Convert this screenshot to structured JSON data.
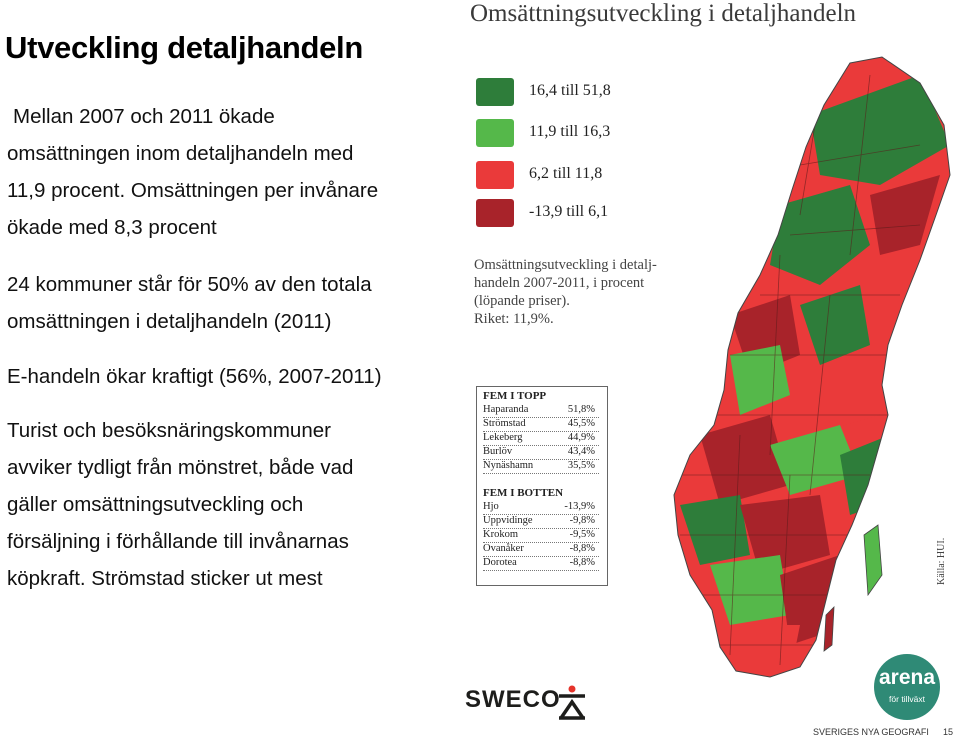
{
  "slide": {
    "title": "Utveckling detaljhandeln",
    "paragraphs": [
      [
        "Mellan 2007 och 2011 ökade",
        "omsättningen inom detaljhandeln med",
        "11,9 procent. Omsättningen per invånare",
        "ökade med 8,3 procent"
      ],
      [
        "24 kommuner  står för 50% av den totala",
        "omsättningen i detaljhandeln (2011)"
      ],
      [
        "E-handeln ökar kraftigt (56%, 2007-2011)"
      ],
      [
        "Turist och besöksnäringskommuner",
        "avviker tydligt från mönstret, både vad",
        "gäller omsättningsutveckling och",
        "försäljning i förhållande till invånarnas",
        "köpkraft. Strömstad sticker ut mest"
      ]
    ]
  },
  "map": {
    "title": "Omsättningsutveckling i detaljhandeln",
    "legend": [
      {
        "label": "16,4 till 51,8",
        "color": "#2e7d3a"
      },
      {
        "label": "11,9 till 16,3",
        "color": "#55b84a"
      },
      {
        "label": "6,2 till 11,8",
        "color": "#ea3a3a"
      },
      {
        "label": "-13,9 till 6,1",
        "color": "#a8232a"
      }
    ],
    "description": [
      "Omsättningsutveckling i detalj-",
      "handeln 2007-2011, i procent",
      "(löpande priser).",
      "Riket: 11,9%."
    ],
    "top": {
      "heading": "FEM I TOPP",
      "rows": [
        {
          "name": "Haparanda",
          "value": "51,8%"
        },
        {
          "name": "Strömstad",
          "value": "45,5%"
        },
        {
          "name": "Lekeberg",
          "value": "44,9%"
        },
        {
          "name": "Burlöv",
          "value": "43,4%"
        },
        {
          "name": "Nynäshamn",
          "value": "35,5%"
        }
      ]
    },
    "bottom": {
      "heading": "FEM I BOTTEN",
      "rows": [
        {
          "name": "Hjo",
          "value": "-13,9%"
        },
        {
          "name": "Uppvidinge",
          "value": "-9,8%"
        },
        {
          "name": "Krokom",
          "value": "-9,5%"
        },
        {
          "name": "Ovanåker",
          "value": "-8,8%"
        },
        {
          "name": "Dorotea",
          "value": "-8,8%"
        }
      ]
    },
    "source": "Källa: HUI."
  },
  "footer": {
    "sweco": "SWECO",
    "arena_name": "arena",
    "arena_sub": "för tillväxt",
    "series": "SVERIGES NYA GEOGRAFI",
    "page": "15"
  }
}
